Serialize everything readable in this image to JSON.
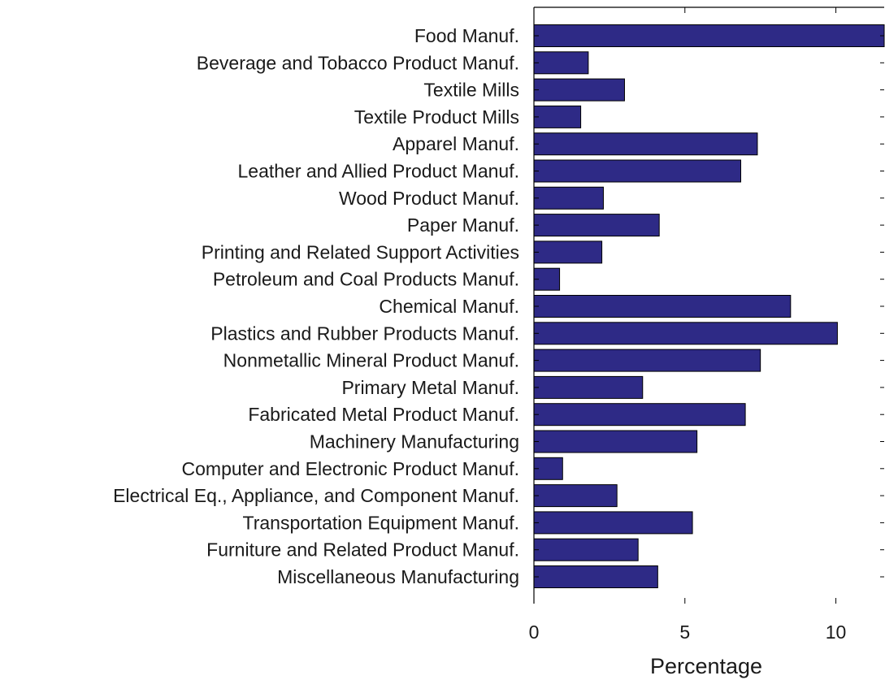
{
  "chart_data": {
    "type": "bar",
    "orientation": "horizontal",
    "categories": [
      "Food Manuf.",
      "Beverage and Tobacco Product Manuf.",
      "Textile Mills",
      "Textile Product Mills",
      "Apparel Manuf.",
      "Leather and Allied Product Manuf.",
      "Wood Product Manuf.",
      "Paper Manuf.",
      "Printing and Related Support Activities",
      "Petroleum and Coal Products Manuf.",
      "Chemical Manuf.",
      "Plastics and Rubber Products Manuf.",
      "Nonmetallic Mineral Product Manuf.",
      "Primary Metal Manuf.",
      "Fabricated Metal Product Manuf.",
      "Machinery Manufacturing",
      "Computer and Electronic Product Manuf.",
      "Electrical Eq., Appliance, and Component Manuf.",
      "Transportation Equipment Manuf.",
      "Furniture and Related Product Manuf.",
      "Miscellaneous Manufacturing"
    ],
    "values": [
      11.6,
      1.8,
      3.0,
      1.55,
      7.4,
      6.85,
      2.3,
      4.15,
      2.25,
      0.85,
      8.5,
      10.05,
      7.5,
      3.6,
      7.0,
      5.4,
      0.95,
      2.75,
      5.25,
      3.45,
      4.1
    ],
    "xlabel": "Percentage",
    "ylabel": "",
    "title": "",
    "xlim": [
      0,
      11.6
    ],
    "xticks": [
      0,
      5,
      10
    ],
    "grid": false,
    "bar_color": "#2e2a86",
    "bar_edge_color": "#000000"
  }
}
